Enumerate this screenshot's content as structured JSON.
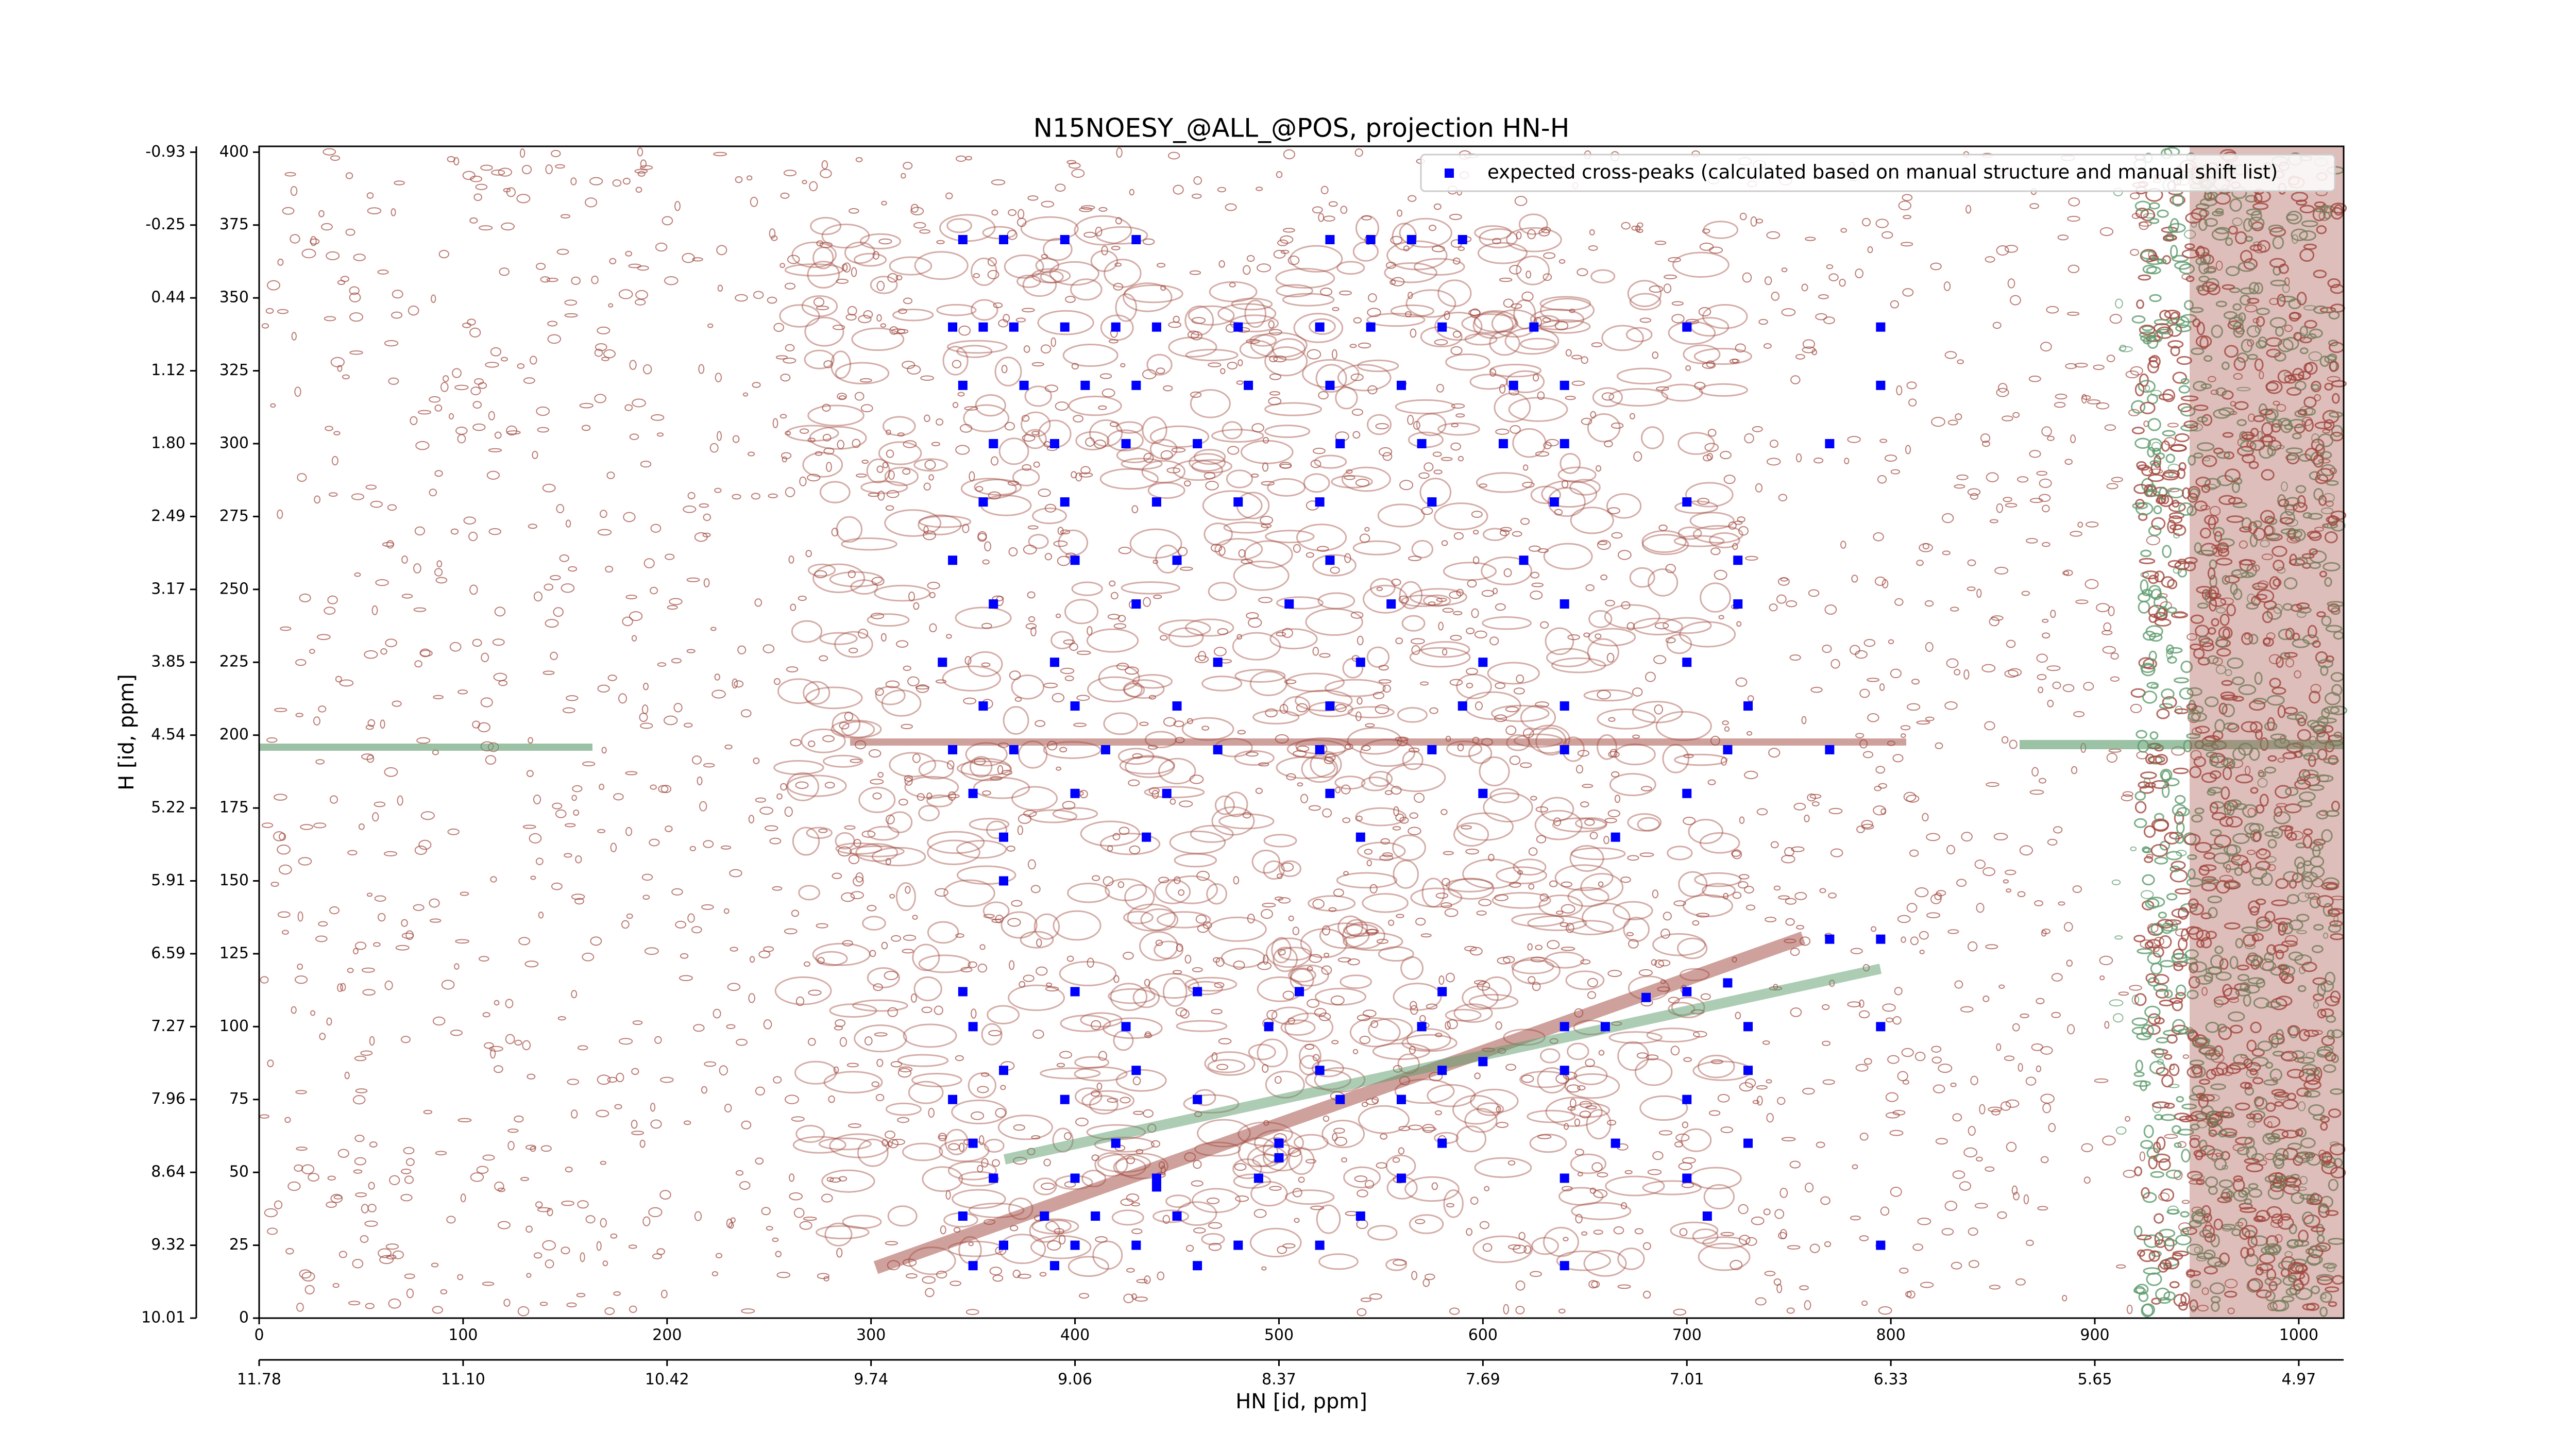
{
  "chart_data": {
    "type": "scatter",
    "title": "N15NOESY_@ALL_@POS, projection HN-H",
    "x_label": "HN [id, ppm]",
    "y_label": "H [id, ppm]",
    "legend": "upper right",
    "xlim": [
      0,
      1022
    ],
    "ylim": [
      0,
      402
    ],
    "xticks": [
      0,
      100,
      200,
      300,
      400,
      500,
      600,
      700,
      800,
      900,
      1000
    ],
    "x_ppm_ticks": [
      {
        "value": 0,
        "label": "11.78"
      },
      {
        "value": 100,
        "label": "11.10"
      },
      {
        "value": 200,
        "label": "10.42"
      },
      {
        "value": 300,
        "label": "9.74"
      },
      {
        "value": 400,
        "label": "9.06"
      },
      {
        "value": 500,
        "label": "8.37"
      },
      {
        "value": 600,
        "label": "7.69"
      },
      {
        "value": 700,
        "label": "7.01"
      },
      {
        "value": 800,
        "label": "6.33"
      },
      {
        "value": 900,
        "label": "5.65"
      },
      {
        "value": 1000,
        "label": "4.97"
      }
    ],
    "yticks": [
      0,
      25,
      50,
      75,
      100,
      125,
      150,
      175,
      200,
      225,
      250,
      275,
      300,
      325,
      350,
      375,
      400
    ],
    "y_ppm_ticks": [
      {
        "value": 0,
        "label": "10.01"
      },
      {
        "value": 25,
        "label": "9.32"
      },
      {
        "value": 50,
        "label": "8.64"
      },
      {
        "value": 75,
        "label": "7.96"
      },
      {
        "value": 100,
        "label": "7.27"
      },
      {
        "value": 125,
        "label": "6.59"
      },
      {
        "value": 150,
        "label": "5.91"
      },
      {
        "value": 175,
        "label": "5.22"
      },
      {
        "value": 200,
        "label": "4.54"
      },
      {
        "value": 225,
        "label": "3.85"
      },
      {
        "value": 250,
        "label": "3.17"
      },
      {
        "value": 275,
        "label": "2.49"
      },
      {
        "value": 300,
        "label": "1.80"
      },
      {
        "value": 325,
        "label": "1.12"
      },
      {
        "value": 350,
        "label": "0.44"
      },
      {
        "value": 375,
        "label": "-0.25"
      },
      {
        "value": 400,
        "label": "-0.93"
      }
    ],
    "x": [
      345,
      365,
      395,
      430,
      525,
      545,
      565,
      590,
      340,
      355,
      370,
      395,
      420,
      440,
      480,
      520,
      545,
      580,
      625,
      700,
      795,
      345,
      375,
      405,
      430,
      485,
      525,
      560,
      615,
      640,
      795,
      360,
      390,
      425,
      460,
      530,
      570,
      610,
      640,
      770,
      355,
      395,
      440,
      480,
      520,
      575,
      635,
      700,
      340,
      400,
      450,
      525,
      620,
      725,
      360,
      430,
      505,
      555,
      640,
      725,
      335,
      390,
      470,
      540,
      600,
      700,
      355,
      400,
      450,
      525,
      590,
      640,
      730,
      340,
      370,
      415,
      470,
      520,
      575,
      640,
      720,
      770,
      350,
      400,
      445,
      525,
      600,
      700,
      365,
      435,
      540,
      665,
      365,
      770,
      795,
      345,
      400,
      460,
      510,
      580,
      700,
      350,
      425,
      495,
      570,
      660,
      730,
      795,
      365,
      430,
      520,
      580,
      640,
      730,
      340,
      395,
      460,
      530,
      560,
      700,
      350,
      420,
      500,
      580,
      665,
      730,
      360,
      400,
      440,
      490,
      560,
      640,
      700,
      345,
      385,
      410,
      450,
      540,
      710,
      365,
      400,
      430,
      480,
      520,
      795,
      350,
      390,
      460,
      640,
      440,
      500,
      560,
      600,
      640,
      680,
      720
    ],
    "series": [
      {
        "name": "expected cross-peaks (calculated based on manual structure and manual shift list)",
        "color": "#0000ff",
        "values": [
          370,
          370,
          370,
          370,
          370,
          370,
          370,
          370,
          340,
          340,
          340,
          340,
          340,
          340,
          340,
          340,
          340,
          340,
          340,
          340,
          340,
          320,
          320,
          320,
          320,
          320,
          320,
          320,
          320,
          320,
          320,
          300,
          300,
          300,
          300,
          300,
          300,
          300,
          300,
          300,
          280,
          280,
          280,
          280,
          280,
          280,
          280,
          280,
          260,
          260,
          260,
          260,
          260,
          260,
          245,
          245,
          245,
          245,
          245,
          245,
          225,
          225,
          225,
          225,
          225,
          225,
          210,
          210,
          210,
          210,
          210,
          210,
          210,
          195,
          195,
          195,
          195,
          195,
          195,
          195,
          195,
          195,
          180,
          180,
          180,
          180,
          180,
          180,
          165,
          165,
          165,
          165,
          150,
          130,
          130,
          112,
          112,
          112,
          112,
          112,
          112,
          100,
          100,
          100,
          100,
          100,
          100,
          100,
          85,
          85,
          85,
          85,
          85,
          85,
          75,
          75,
          75,
          75,
          75,
          75,
          60,
          60,
          60,
          60,
          60,
          60,
          48,
          48,
          48,
          48,
          48,
          48,
          48,
          35,
          35,
          35,
          35,
          35,
          35,
          25,
          25,
          25,
          25,
          25,
          25,
          18,
          18,
          18,
          18,
          45,
          55,
          75,
          88,
          100,
          110,
          115
        ]
      }
    ]
  }
}
